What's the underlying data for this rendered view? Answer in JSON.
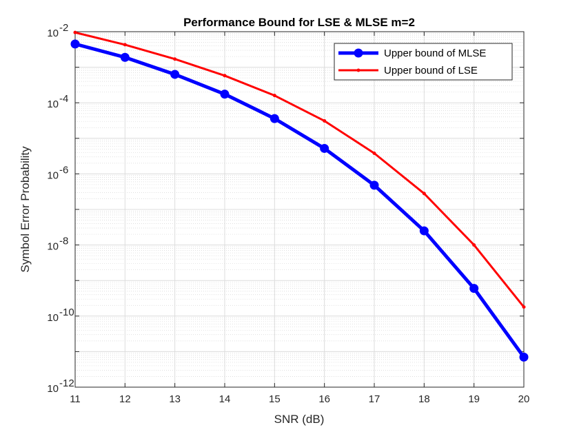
{
  "chart_data": {
    "type": "line",
    "title": "Performance Bound for LSE & MLSE m=2",
    "xlabel": "SNR (dB)",
    "ylabel": "Symbol Error Probability",
    "x": [
      11,
      12,
      13,
      14,
      15,
      16,
      17,
      18,
      19,
      20
    ],
    "xlim": [
      11,
      20
    ],
    "ylim": [
      1e-12,
      0.01
    ],
    "yscale": "log",
    "grid": true,
    "minor_grid": true,
    "legend_position": "top-right",
    "xticks": [
      "11",
      "12",
      "13",
      "14",
      "15",
      "16",
      "17",
      "18",
      "19",
      "20"
    ],
    "yticks": [
      {
        "base": "10",
        "exp": "-12",
        "value": 1e-12
      },
      {
        "base": "10",
        "exp": "-10",
        "value": 1e-10
      },
      {
        "base": "10",
        "exp": "-8",
        "value": 1e-08
      },
      {
        "base": "10",
        "exp": "-6",
        "value": 1e-06
      },
      {
        "base": "10",
        "exp": "-4",
        "value": 0.0001
      },
      {
        "base": "10",
        "exp": "-2",
        "value": 0.01
      }
    ],
    "series": [
      {
        "name": "Upper bound of MLSE",
        "color": "#0000ff",
        "marker": "circle",
        "values": [
          0.0045,
          0.0019,
          0.00063,
          0.000175,
          3.6e-05,
          5.2e-06,
          4.8e-07,
          2.5e-08,
          6e-10,
          7e-12
        ]
      },
      {
        "name": "Upper bound of LSE",
        "color": "#ff0000",
        "marker": "point",
        "values": [
          0.0095,
          0.0043,
          0.0017,
          0.00058,
          0.00016,
          3.1e-05,
          3.8e-06,
          2.8e-07,
          1e-08,
          1.8e-10
        ]
      }
    ]
  }
}
